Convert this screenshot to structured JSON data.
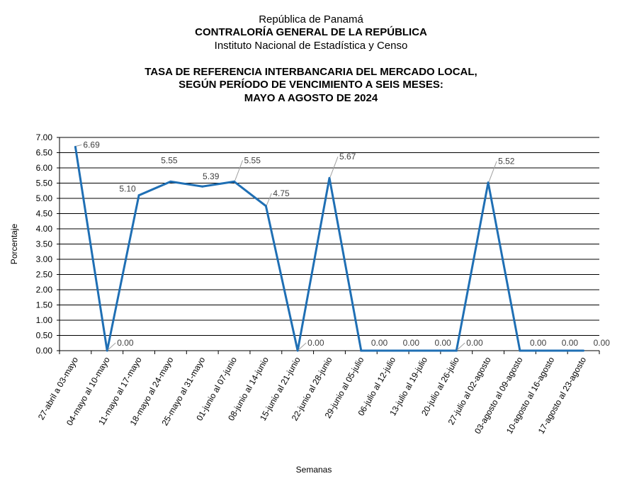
{
  "header": {
    "line1": "República de Panamá",
    "line2": "CONTRALORÍA GENERAL DE LA REPÚBLICA",
    "line3": "Instituto  Nacional de Estadística  y  Censo"
  },
  "chart_data": {
    "type": "line",
    "title": [
      "TASA DE REFERENCIA INTERBANCARIA DEL MERCADO LOCAL,",
      "SEGÚN PERÍODO DE VENCIMIENTO A SEIS MESES:",
      "MAYO A AGOSTO DE 2024"
    ],
    "xlabel": "Semanas",
    "ylabel": "Porcentaje",
    "ylim": [
      0,
      7
    ],
    "yticks": [
      "0.00",
      "0.50",
      "1.00",
      "1.50",
      "2.00",
      "2.50",
      "3.00",
      "3.50",
      "4.00",
      "4.50",
      "5.00",
      "5.50",
      "6.00",
      "6.50",
      "7.00"
    ],
    "grid": true,
    "line_color": "#1f6fb4",
    "categories": [
      "27-abril a 03-mayo",
      "04-mayo al 10-mayo",
      "11-mayo al 17-mayo",
      "18-mayo al 24-mayo",
      "25-mayo al 31-mayo",
      "01-junio al 07-junio",
      "08-junio al 14-junio",
      "15-junio al 21-junio",
      "22-junio al 28-junio",
      "29-junio al 05-julio",
      "06-julio al 12-julio",
      "13-julio al 19-julio",
      "20-julio al 26-julio",
      "27-julio al 02-agosto",
      "03-agosto al 09-agosto",
      "10-agosto al 16-agosto",
      "17-agosto al 23-agosto"
    ],
    "series": [
      {
        "values": [
          6.69,
          0.0,
          5.1,
          5.55,
          5.39,
          5.55,
          4.75,
          0.0,
          5.67,
          0.0,
          0.0,
          0.0,
          0.0,
          5.52,
          0.0,
          0.0,
          0.0
        ],
        "labels": [
          "6.69",
          "0.00",
          "5.10",
          "5.55",
          "5.39",
          "5.55",
          "4.75",
          "0.00",
          "5.67",
          "0.00",
          "0.00",
          "0.00",
          "0.00",
          "5.52",
          "0.00",
          "0.00",
          "0.00"
        ]
      }
    ]
  }
}
